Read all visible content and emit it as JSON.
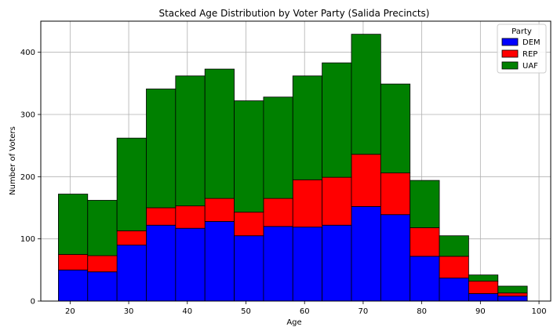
{
  "chart_data": {
    "type": "bar",
    "stacked": true,
    "title": "Stacked Age Distribution by Voter Party (Salida Precincts)",
    "xlabel": "Age",
    "ylabel": "Number of Voters",
    "xlim": [
      15,
      102
    ],
    "ylim": [
      0,
      450
    ],
    "xticks": [
      20,
      30,
      40,
      50,
      60,
      70,
      80,
      90,
      100
    ],
    "yticks": [
      0,
      100,
      200,
      300,
      400
    ],
    "grid": true,
    "legend": {
      "title": "Party",
      "position": "top-right"
    },
    "bin_edges": [
      18,
      23,
      28,
      33,
      38,
      43,
      48,
      53,
      58,
      63,
      68,
      73,
      78,
      83,
      88,
      93,
      98
    ],
    "series": [
      {
        "name": "DEM",
        "color": "#0000ff",
        "values": [
          50,
          47,
          90,
          122,
          117,
          128,
          105,
          120,
          119,
          122,
          152,
          139,
          72,
          37,
          12,
          8
        ]
      },
      {
        "name": "REP",
        "color": "#ff0000",
        "values": [
          25,
          26,
          23,
          28,
          36,
          37,
          38,
          45,
          76,
          77,
          84,
          67,
          46,
          35,
          20,
          5
        ]
      },
      {
        "name": "UAF",
        "color": "#008000",
        "values": [
          97,
          89,
          149,
          191,
          209,
          208,
          179,
          163,
          167,
          184,
          193,
          143,
          76,
          33,
          10,
          11
        ]
      }
    ]
  }
}
